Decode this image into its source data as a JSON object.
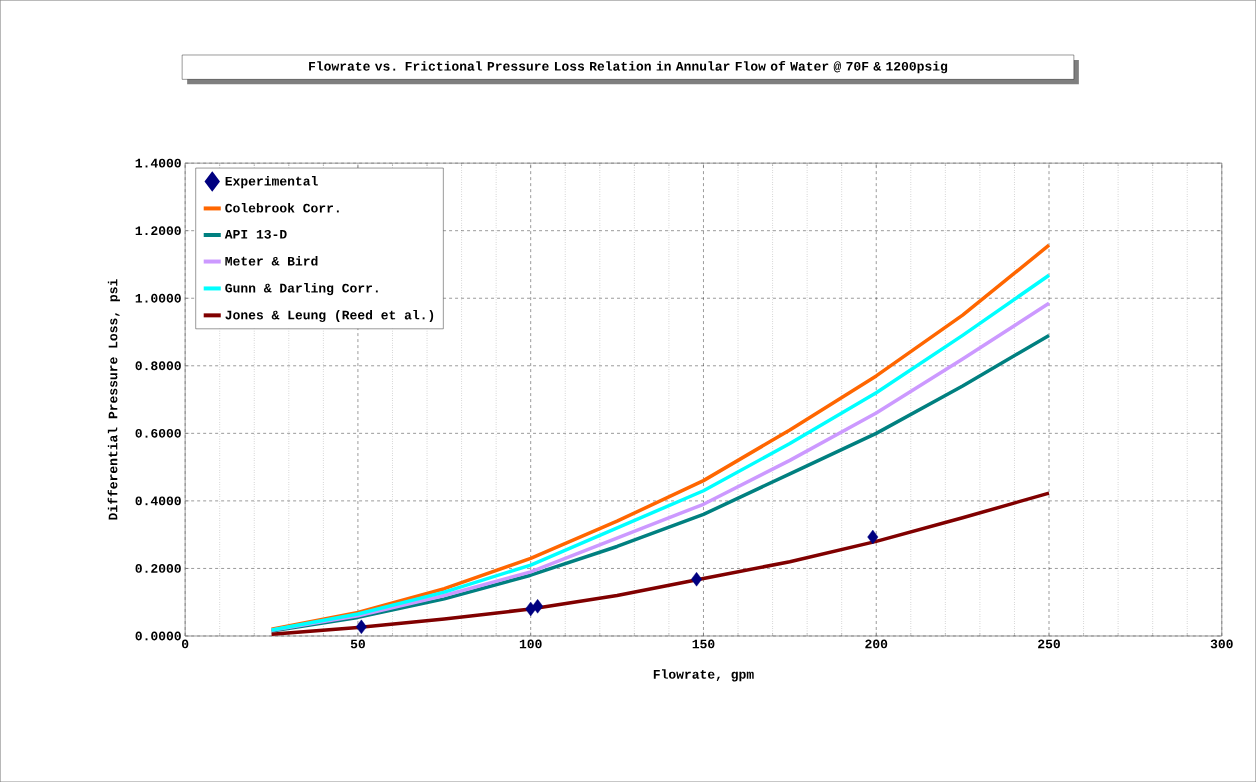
{
  "chart_data": {
    "type": "line",
    "title": "Flowrate vs. Frictional Pressure Loss Relation in Annular Flow of Water @ 70F & 1200psig",
    "xlabel": "Flowrate, gpm",
    "ylabel": "Differential Pressure Loss, psi",
    "xlim": [
      0,
      300
    ],
    "xticks": [
      0,
      50,
      100,
      150,
      200,
      250,
      300
    ],
    "ylim": [
      0,
      1.4
    ],
    "yticks": [
      {
        "value": 0,
        "label": "0.0000"
      },
      {
        "value": 0.2,
        "label": "0.2000"
      },
      {
        "value": 0.4,
        "label": "0.4000"
      },
      {
        "value": 0.6,
        "label": "0.6000"
      },
      {
        "value": 0.8,
        "label": "0.8000"
      },
      {
        "value": 1.0,
        "label": "1.0000"
      },
      {
        "value": 1.2,
        "label": "1.2000"
      },
      {
        "value": 1.4,
        "label": "1.4000"
      }
    ],
    "grid": true,
    "legend": "top left",
    "series": [
      {
        "name": "Experimental",
        "type": "scatter",
        "marker": "diamond",
        "color": "#000080",
        "x": [
          51,
          100,
          102,
          148,
          199
        ],
        "values": [
          0.027,
          0.08,
          0.088,
          0.168,
          0.293
        ]
      },
      {
        "name": "Colebrook Corr.",
        "color": "#ff6600",
        "x": [
          25,
          50,
          75,
          100,
          125,
          150,
          175,
          200,
          225,
          250
        ],
        "values": [
          0.02,
          0.07,
          0.14,
          0.23,
          0.34,
          0.46,
          0.61,
          0.77,
          0.95,
          1.157
        ]
      },
      {
        "name": "API 13-D",
        "color": "#008080",
        "x": [
          25,
          50,
          75,
          100,
          125,
          150,
          175,
          200,
          225,
          250
        ],
        "values": [
          0.015,
          0.055,
          0.11,
          0.18,
          0.265,
          0.36,
          0.48,
          0.6,
          0.74,
          0.89
        ]
      },
      {
        "name": "Meter & Bird",
        "color": "#cc99ff",
        "x": [
          25,
          50,
          75,
          100,
          125,
          150,
          175,
          200,
          225,
          250
        ],
        "values": [
          0.017,
          0.06,
          0.12,
          0.19,
          0.29,
          0.39,
          0.52,
          0.66,
          0.82,
          0.985
        ]
      },
      {
        "name": "Gunn & Darling Corr.",
        "color": "#00ffff",
        "x": [
          25,
          50,
          75,
          100,
          125,
          150,
          175,
          200,
          225,
          250
        ],
        "values": [
          0.018,
          0.065,
          0.13,
          0.21,
          0.32,
          0.43,
          0.57,
          0.72,
          0.89,
          1.068
        ]
      },
      {
        "name": "Jones & Leung (Reed et al.)",
        "color": "#800000",
        "x": [
          25,
          50,
          75,
          100,
          125,
          150,
          175,
          200,
          225,
          250
        ],
        "values": [
          0.005,
          0.025,
          0.05,
          0.08,
          0.12,
          0.17,
          0.22,
          0.28,
          0.35,
          0.423
        ]
      }
    ]
  }
}
